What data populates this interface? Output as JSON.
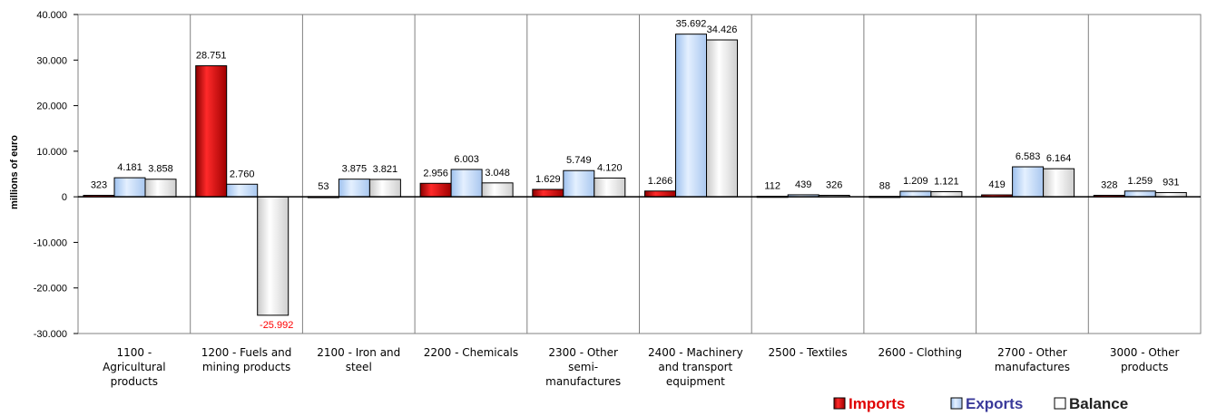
{
  "chart_data": {
    "type": "bar",
    "title": "",
    "xlabel": "",
    "ylabel": "millions of euro",
    "ylim": [
      -30000,
      40000
    ],
    "yticks": [
      {
        "value": 40000,
        "label": "40.000"
      },
      {
        "value": 30000,
        "label": "30.000"
      },
      {
        "value": 20000,
        "label": "20.000"
      },
      {
        "value": 10000,
        "label": "10.000"
      },
      {
        "value": 0,
        "label": "0"
      },
      {
        "value": -10000,
        "label": "-10.000"
      },
      {
        "value": -20000,
        "label": "-20.000"
      },
      {
        "value": -30000,
        "label": "-30.000"
      }
    ],
    "grid": "vertical category separators",
    "legend_position": "bottom-right",
    "categories": [
      [
        "1100 -",
        "Agricultural",
        "products"
      ],
      [
        "1200 - Fuels and",
        "mining products"
      ],
      [
        "2100 - Iron and",
        "steel"
      ],
      [
        "2200 - Chemicals"
      ],
      [
        "2300 - Other",
        "semi-",
        "manufactures"
      ],
      [
        "2400 - Machinery",
        "and transport",
        "equipment"
      ],
      [
        "2500 - Textiles"
      ],
      [
        "2600 - Clothing"
      ],
      [
        "2700 - Other",
        "manufactures"
      ],
      [
        "3000 - Other",
        "products"
      ]
    ],
    "series": [
      {
        "name": "Imports",
        "color": "#d40000",
        "values": [
          323,
          28751,
          53,
          2956,
          1629,
          1266,
          112,
          88,
          419,
          328
        ],
        "labels": [
          "323",
          "28.751",
          "53",
          "2.956",
          "1.629",
          "1.266",
          "112",
          "88",
          "419",
          "328"
        ]
      },
      {
        "name": "Exports",
        "color": "#c6ddf8",
        "values": [
          4181,
          2760,
          3875,
          6003,
          5749,
          35692,
          439,
          1209,
          6583,
          1259
        ],
        "labels": [
          "4.181",
          "2.760",
          "3.875",
          "6.003",
          "5.749",
          "35.692",
          "439",
          "1.209",
          "6.583",
          "1.259"
        ]
      },
      {
        "name": "Balance",
        "color": "#eeeeee",
        "values": [
          3858,
          -25992,
          3821,
          3048,
          4120,
          34426,
          326,
          1121,
          6164,
          931
        ],
        "labels": [
          "3.858",
          "-25.992",
          "3.821",
          "3.048",
          "4.120",
          "34.426",
          "326",
          "1.121",
          "6.164",
          "931"
        ]
      }
    ],
    "legend": [
      {
        "label": "Imports",
        "text_color": "#e00000",
        "swatch_color": "#d40000"
      },
      {
        "label": "Exports",
        "text_color": "#3a3a9a",
        "swatch_color": "#c6ddf8"
      },
      {
        "label": "Balance",
        "text_color": "#222222",
        "swatch_color": "#ffffff"
      }
    ]
  }
}
